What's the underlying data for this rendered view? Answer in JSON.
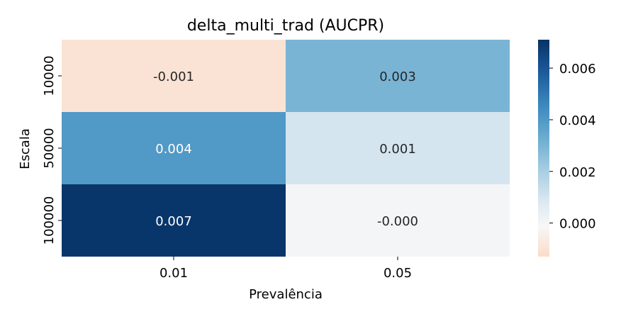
{
  "chart_data": {
    "type": "heatmap",
    "title": "delta_multi_trad (AUCPR)",
    "xlabel": "Prevalência",
    "ylabel": "Escala",
    "x_categories": [
      "0.01",
      "0.05"
    ],
    "y_categories": [
      "10000",
      "50000",
      "100000"
    ],
    "values": [
      [
        -0.001,
        0.003
      ],
      [
        0.004,
        0.001
      ],
      [
        0.007,
        -0.0
      ]
    ],
    "annotations": [
      [
        "-0.001",
        "0.003"
      ],
      [
        "0.004",
        "0.001"
      ],
      [
        "0.007",
        "-0.000"
      ]
    ],
    "colormap": "RdBu",
    "vmin": -0.0013,
    "vmax": 0.0071,
    "colorbar_ticks": [
      "0.000",
      "0.002",
      "0.004",
      "0.006"
    ],
    "colorbar_tick_values": [
      0.0,
      0.002,
      0.004,
      0.006
    ],
    "grid": false,
    "legend": "colorbar-right"
  }
}
